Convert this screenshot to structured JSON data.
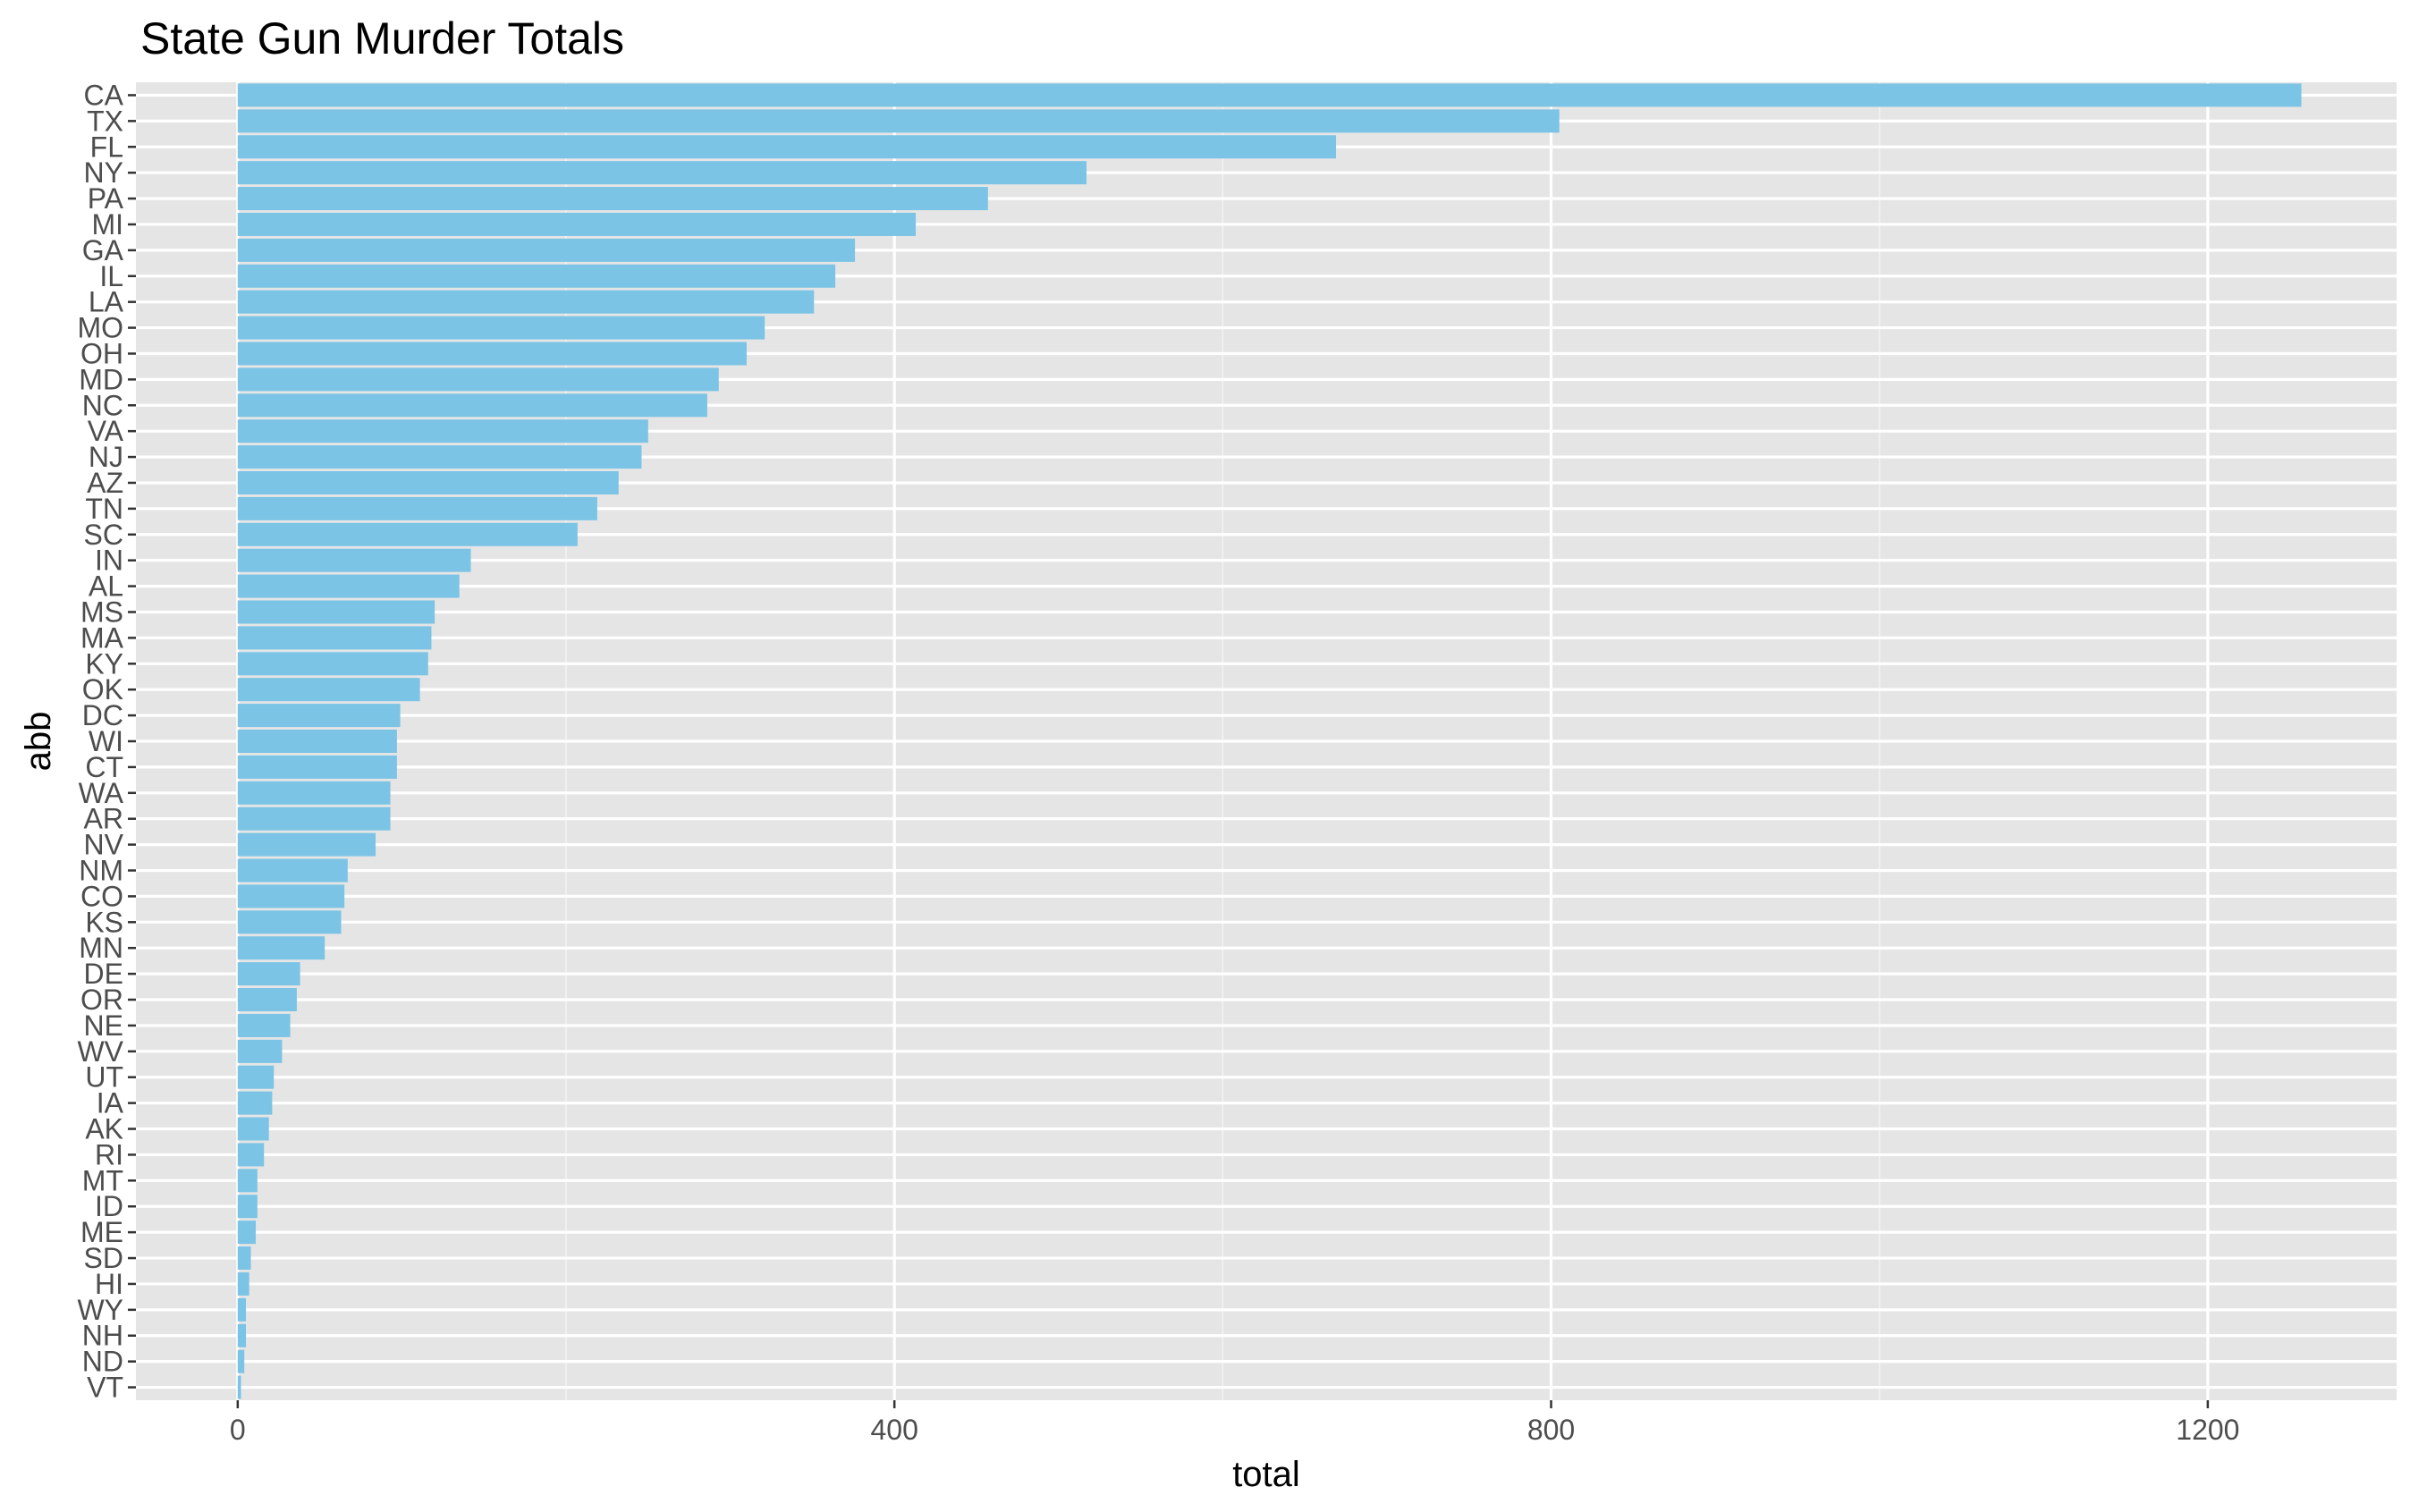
{
  "chart_data": {
    "type": "bar",
    "orientation": "horizontal",
    "title": "State Gun Murder Totals",
    "xlabel": "total",
    "ylabel": "abb",
    "xlim": [
      -62,
      1315
    ],
    "xticks": [
      0,
      400,
      800,
      1200
    ],
    "grid": true,
    "legend": "none",
    "bar_color": "#7bc4e5",
    "panel_color": "#e5e5e5",
    "categories": [
      "CA",
      "TX",
      "FL",
      "NY",
      "PA",
      "MI",
      "GA",
      "IL",
      "LA",
      "MO",
      "OH",
      "MD",
      "NC",
      "VA",
      "NJ",
      "AZ",
      "TN",
      "SC",
      "IN",
      "AL",
      "MS",
      "MA",
      "KY",
      "OK",
      "DC",
      "WI",
      "CT",
      "WA",
      "AR",
      "NV",
      "NM",
      "CO",
      "KS",
      "MN",
      "DE",
      "OR",
      "NE",
      "WV",
      "UT",
      "IA",
      "AK",
      "RI",
      "MT",
      "ID",
      "ME",
      "SD",
      "HI",
      "WY",
      "NH",
      "ND",
      "VT"
    ],
    "values": [
      1257,
      805,
      669,
      517,
      457,
      413,
      376,
      364,
      351,
      321,
      310,
      293,
      286,
      250,
      246,
      232,
      219,
      207,
      142,
      135,
      120,
      118,
      116,
      111,
      99,
      97,
      97,
      93,
      93,
      84,
      67,
      65,
      63,
      53,
      38,
      36,
      32,
      27,
      22,
      21,
      19,
      16,
      12,
      12,
      11,
      8,
      7,
      5,
      5,
      4,
      2
    ]
  }
}
